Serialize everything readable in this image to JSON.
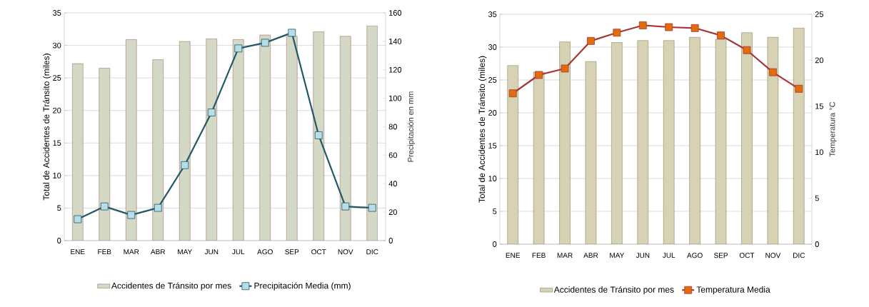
{
  "chart_data": [
    {
      "type": "bar",
      "categories": [
        "ENE",
        "FEB",
        "MAR",
        "ABR",
        "MAY",
        "JUN",
        "JUL",
        "AGO",
        "SEP",
        "OCT",
        "NOV",
        "DIC"
      ],
      "ylabel": "Total de Accidentes de Tránsito (miles)",
      "y2label": "Precipitación en mm",
      "ylim": [
        0,
        35
      ],
      "yticks": [
        0,
        5,
        10,
        15,
        20,
        25,
        30,
        35
      ],
      "y2lim": [
        0,
        160
      ],
      "y2ticks": [
        0,
        20,
        40,
        60,
        80,
        100,
        120,
        140,
        160
      ],
      "grid": "y",
      "legend": "bottom",
      "series": [
        {
          "name": "Accidentes de Tránsito por mes",
          "type": "bar",
          "color": "#d4d9c6",
          "values": [
            27.2,
            26.5,
            30.9,
            27.8,
            30.6,
            31.0,
            30.9,
            31.6,
            31.4,
            32.1,
            31.4,
            33.0
          ]
        },
        {
          "name": "Precipitación Media (mm)",
          "type": "line",
          "axis": "y2",
          "color": "#215968",
          "marker": "square",
          "line_style": "solid",
          "values": [
            15,
            24,
            18,
            23,
            53,
            90,
            135,
            139,
            146,
            74,
            24,
            23
          ]
        }
      ]
    },
    {
      "type": "bar",
      "categories": [
        "ENE",
        "FEB",
        "MAR",
        "ABR",
        "MAY",
        "JUN",
        "JUL",
        "AGO",
        "SEP",
        "OCT",
        "NOV",
        "DIC"
      ],
      "ylabel": "Total de Accidentes de Tránsito (miles)",
      "y2label": "Temperatura °C",
      "ylim": [
        0,
        35
      ],
      "yticks": [
        0,
        5,
        10,
        15,
        20,
        25,
        30,
        35
      ],
      "y2lim": [
        0,
        25
      ],
      "y2ticks": [
        0,
        5,
        10,
        15,
        20,
        25
      ],
      "grid": "y",
      "legend": "bottom",
      "series": [
        {
          "name": "Accidentes de Tránsito por mes",
          "type": "bar",
          "color": "#d8d2b4",
          "values": [
            27.2,
            26.2,
            30.8,
            27.8,
            30.7,
            31.0,
            31.0,
            31.5,
            31.2,
            32.2,
            31.5,
            32.9
          ]
        },
        {
          "name": "Temperatura Media",
          "type": "line",
          "axis": "y2",
          "color": "#a3373a",
          "marker": "square",
          "line_style": "solid",
          "values": [
            16.4,
            18.4,
            19.1,
            22.1,
            23.0,
            23.8,
            23.6,
            23.5,
            22.7,
            21.1,
            18.7,
            16.9
          ]
        }
      ]
    }
  ]
}
